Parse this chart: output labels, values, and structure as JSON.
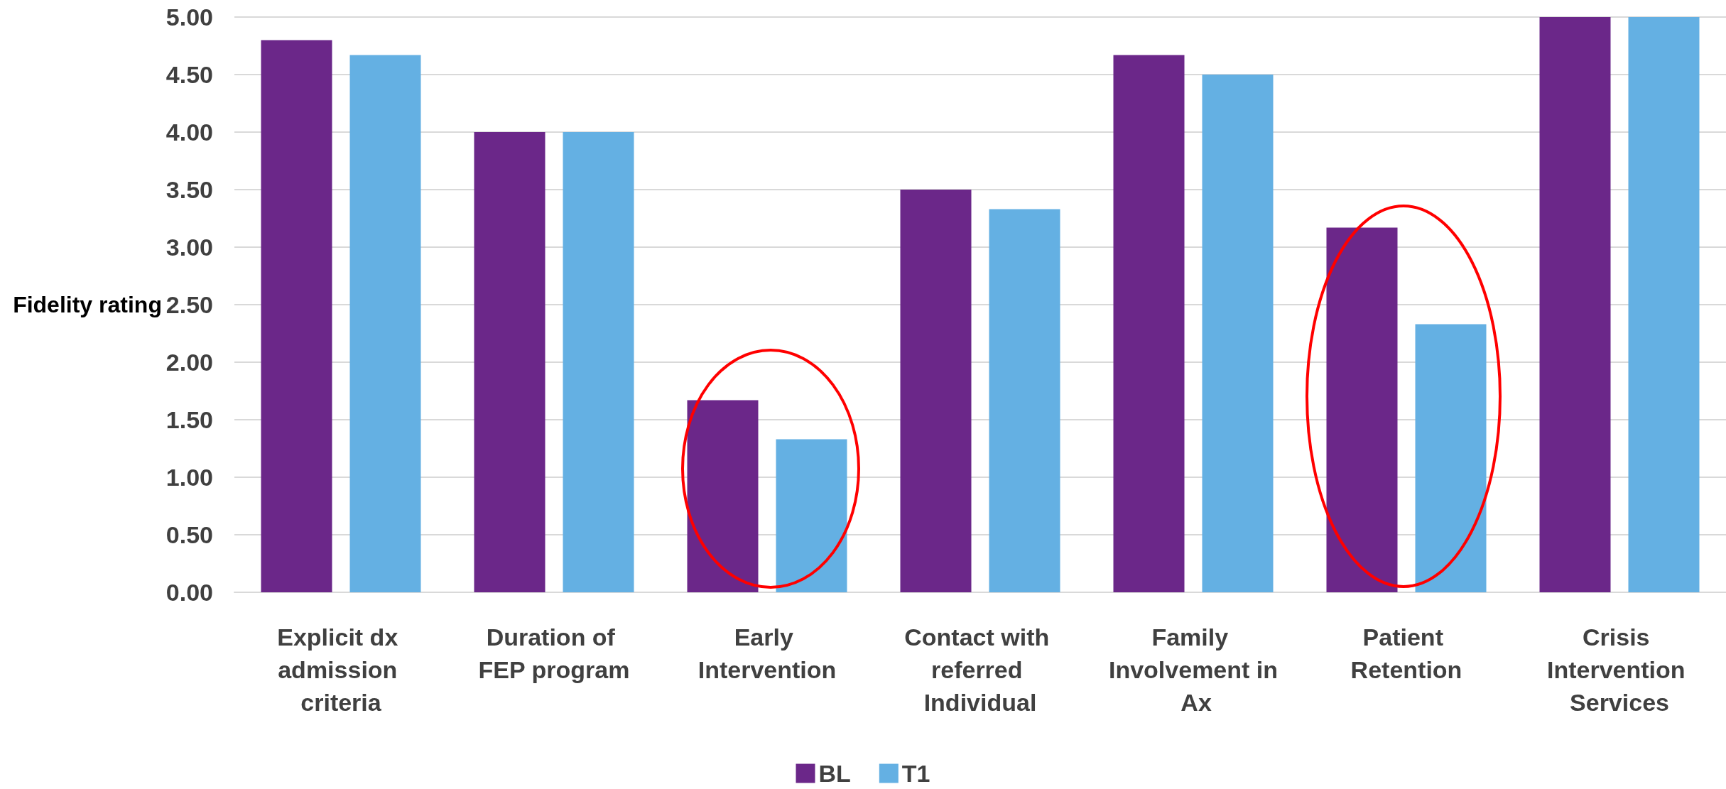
{
  "chart_data": {
    "type": "bar",
    "ylabel": "Fidelity rating",
    "categories": [
      "Explicit dx admission criteria",
      "Duration of FEP program",
      "Early Intervention",
      "Contact with referred Individual",
      "Family Involvement in Ax",
      "Patient Retention",
      "Crisis Intervention Services"
    ],
    "series": [
      {
        "name": "BL",
        "color": "#6b2789",
        "values": [
          4.8,
          4.0,
          1.67,
          3.5,
          4.67,
          3.17,
          5.0
        ]
      },
      {
        "name": "T1",
        "color": "#64b0e3",
        "values": [
          4.67,
          4.0,
          1.33,
          3.33,
          4.5,
          2.33,
          5.0
        ]
      }
    ],
    "ylim": [
      0,
      5
    ],
    "yticks": [
      {
        "value": 0,
        "label": "0.00"
      },
      {
        "value": 0.5,
        "label": "0.50"
      },
      {
        "value": 1,
        "label": "1.00"
      },
      {
        "value": 1.5,
        "label": "1.50"
      },
      {
        "value": 2,
        "label": "2.00"
      },
      {
        "value": 2.5,
        "label": "2.50"
      },
      {
        "value": 3,
        "label": "3.00"
      },
      {
        "value": 3.5,
        "label": "3.50"
      },
      {
        "value": 4,
        "label": "4.00"
      },
      {
        "value": 4.5,
        "label": "4.50"
      },
      {
        "value": 5,
        "label": "5.00"
      }
    ],
    "grid": "y",
    "legend": "bottom"
  }
}
